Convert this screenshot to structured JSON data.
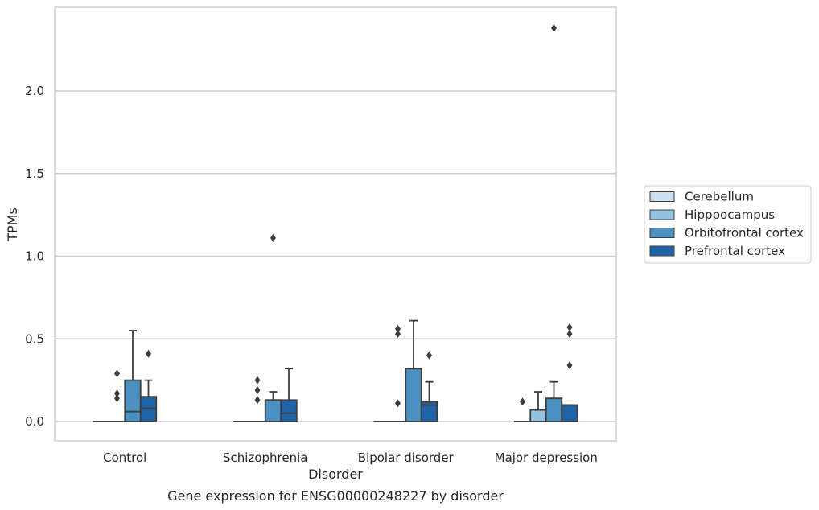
{
  "chart_data": {
    "type": "box",
    "title": "Gene expression for ENSG00000248227 by disorder",
    "xlabel": "Disorder",
    "ylabel": "TPMs",
    "categories": [
      "Control",
      "Schizophrenia",
      "Bipolar disorder",
      "Major depression"
    ],
    "ylim": [
      -0.12,
      2.5
    ],
    "yticks": [
      "0.0",
      "0.5",
      "1.0",
      "1.5",
      "2.0"
    ],
    "yticks_values": [
      0,
      0.5,
      1.0,
      1.5,
      2.0
    ],
    "grid": "horizontal",
    "legend_position": "right",
    "series": [
      {
        "name": "Cerebellum",
        "color": "#cde0f1",
        "boxes": [
          {
            "q1": 0,
            "median": 0,
            "q3": 0,
            "whisker_low": 0,
            "whisker_high": 0,
            "outliers": []
          },
          {
            "q1": 0,
            "median": 0,
            "q3": 0,
            "whisker_low": 0,
            "whisker_high": 0,
            "outliers": []
          },
          {
            "q1": 0,
            "median": 0,
            "q3": 0,
            "whisker_low": 0,
            "whisker_high": 0,
            "outliers": []
          },
          {
            "q1": 0,
            "median": 0,
            "q3": 0,
            "whisker_low": 0,
            "whisker_high": 0,
            "outliers": [
              0.12
            ]
          }
        ]
      },
      {
        "name": "Hipppocampus",
        "color": "#93c3df",
        "boxes": [
          {
            "q1": 0,
            "median": 0,
            "q3": 0,
            "whisker_low": 0,
            "whisker_high": 0,
            "outliers": [
              0.14,
              0.17,
              0.29
            ]
          },
          {
            "q1": 0,
            "median": 0,
            "q3": 0,
            "whisker_low": 0,
            "whisker_high": 0,
            "outliers": [
              0.13,
              0.19,
              0.25
            ]
          },
          {
            "q1": 0,
            "median": 0,
            "q3": 0,
            "whisker_low": 0,
            "whisker_high": 0,
            "outliers": [
              0.11,
              0.53,
              0.56
            ]
          },
          {
            "q1": 0,
            "median": 0,
            "q3": 0.07,
            "whisker_low": 0,
            "whisker_high": 0.18,
            "outliers": []
          }
        ]
      },
      {
        "name": "Orbitofrontal cortex",
        "color": "#4b91c2",
        "boxes": [
          {
            "q1": 0,
            "median": 0.06,
            "q3": 0.25,
            "whisker_low": 0,
            "whisker_high": 0.55,
            "outliers": []
          },
          {
            "q1": 0,
            "median": 0.13,
            "q3": 0.13,
            "whisker_low": 0,
            "whisker_high": 0.18,
            "outliers": [
              1.11
            ]
          },
          {
            "q1": 0,
            "median": 0.32,
            "q3": 0.32,
            "whisker_low": 0,
            "whisker_high": 0.61,
            "outliers": []
          },
          {
            "q1": 0,
            "median": 0.14,
            "q3": 0.14,
            "whisker_low": 0,
            "whisker_high": 0.24,
            "outliers": [
              2.38
            ]
          }
        ]
      },
      {
        "name": "Prefrontal cortex",
        "color": "#1f64a8",
        "boxes": [
          {
            "q1": 0,
            "median": 0.08,
            "q3": 0.15,
            "whisker_low": 0,
            "whisker_high": 0.25,
            "outliers": [
              0.41
            ]
          },
          {
            "q1": 0,
            "median": 0.05,
            "q3": 0.13,
            "whisker_low": 0,
            "whisker_high": 0.32,
            "outliers": []
          },
          {
            "q1": 0,
            "median": 0.1,
            "q3": 0.12,
            "whisker_low": 0,
            "whisker_high": 0.24,
            "outliers": [
              0.4
            ]
          },
          {
            "q1": 0,
            "median": 0.1,
            "q3": 0.1,
            "whisker_low": 0,
            "whisker_high": 0.1,
            "outliers": [
              0.34,
              0.53,
              0.57
            ]
          }
        ]
      }
    ]
  }
}
